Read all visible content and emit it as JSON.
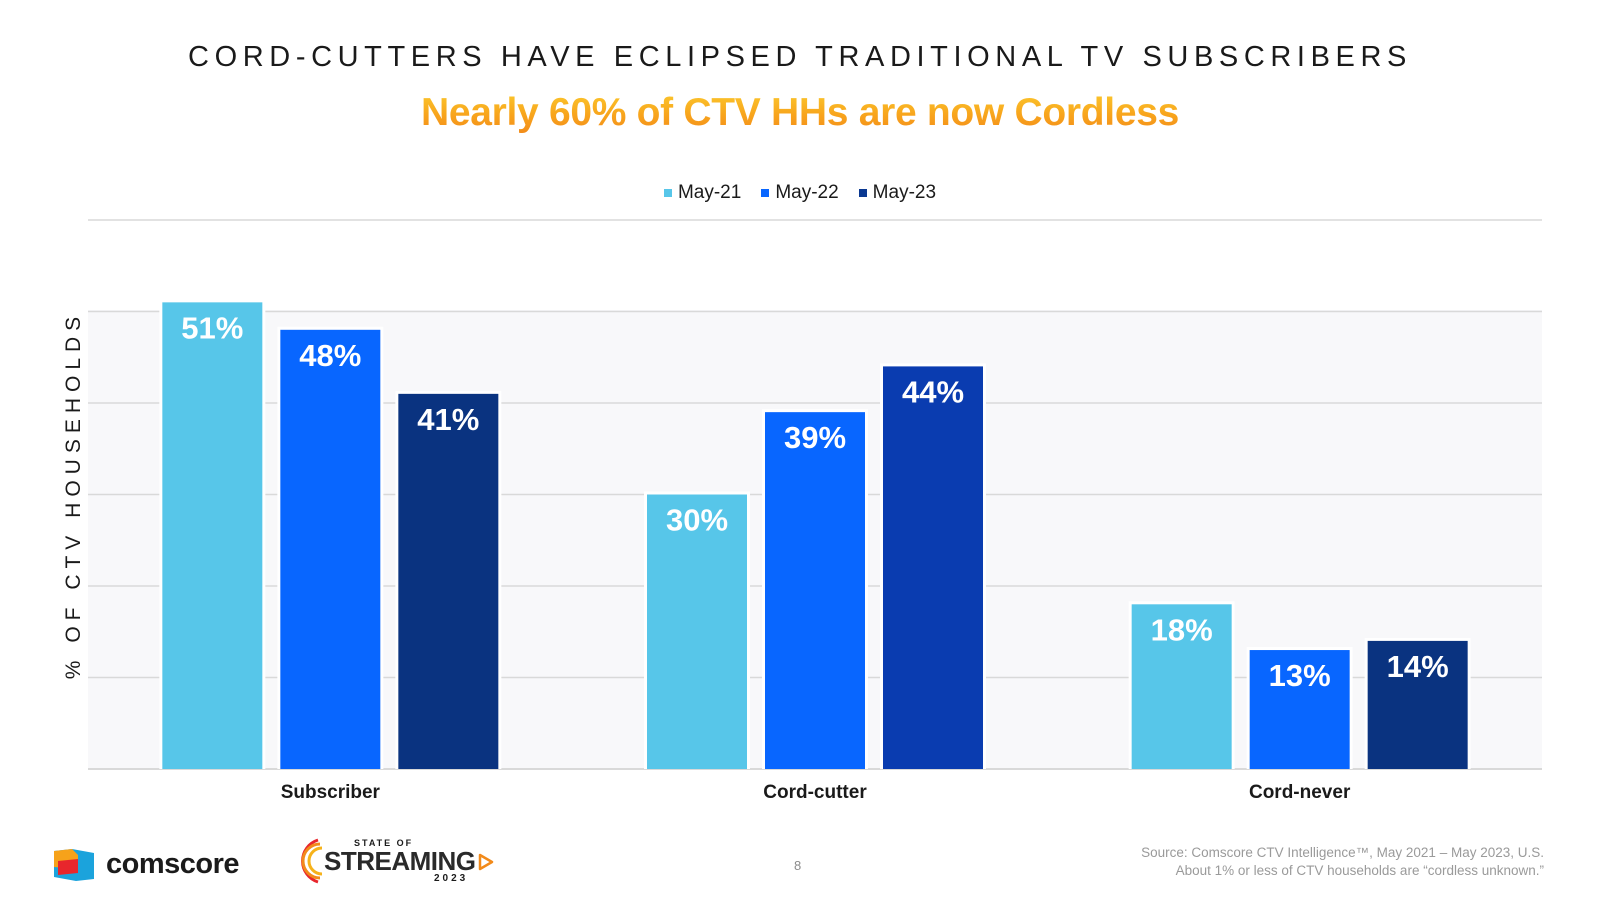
{
  "title": "CORD-CUTTERS HAVE ECLIPSED TRADITIONAL TV SUBSCRIBERS",
  "subtitle": "Nearly 60% of CTV HHs are now Cordless",
  "chart_data": {
    "type": "bar",
    "title": "CORD-CUTTERS HAVE ECLIPSED TRADITIONAL TV SUBSCRIBERS",
    "subtitle": "Nearly 60% of CTV HHs are now Cordless",
    "categories": [
      "Subscriber",
      "Cord-cutter",
      "Cord-never"
    ],
    "series": [
      {
        "name": "May-21",
        "color": "#57c6e9",
        "values": [
          51,
          30,
          18
        ],
        "labels": [
          "51%",
          "30%",
          "18%"
        ]
      },
      {
        "name": "May-22",
        "color": "#0866ff",
        "values": [
          48,
          39,
          13
        ],
        "labels": [
          "48%",
          "39%",
          "13%"
        ]
      },
      {
        "name": "May-23",
        "color": "#0a3891",
        "values": [
          41,
          44,
          14
        ],
        "labels": [
          "41%",
          "44%",
          "14%"
        ],
        "colors": [
          "#0a3380",
          "#0a3cb0",
          "#0a3380"
        ]
      }
    ],
    "xlabel": "",
    "ylabel": "% OF CTV HOUSEHOLDS",
    "ylim": [
      0,
      60
    ],
    "grid": true,
    "legend": "top-center"
  },
  "footer": {
    "brand": "comscore",
    "event_logo": {
      "top": "STATE OF",
      "main": "STREAMING",
      "year": "2023"
    },
    "page_number": "8",
    "source_line1": "Source: Comscore CTV Intelligence™, May 2021 – May 2023, U.S.",
    "source_line2": "About 1% or less of CTV households are “cordless unknown.”"
  },
  "colors": {
    "grid": "#d9d9d9",
    "axis_text": "#1a1a1a",
    "accent_orange": "#f8a41c"
  }
}
